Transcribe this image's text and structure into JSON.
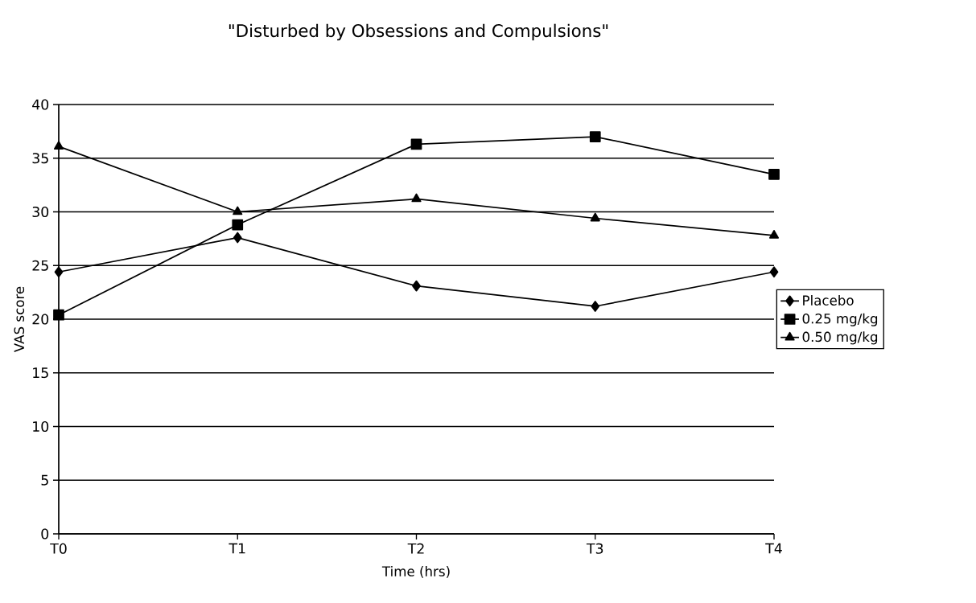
{
  "chart_data": {
    "type": "line",
    "title": "\"Disturbed by Obsessions and Compulsions\"",
    "xlabel": "Time (hrs)",
    "ylabel": "VAS score",
    "categories": [
      "T0",
      "T1",
      "T2",
      "T3",
      "T4"
    ],
    "series": [
      {
        "name": "Placebo",
        "color": "#000000",
        "marker": "diamond",
        "values": [
          24.4,
          27.6,
          23.1,
          21.2,
          24.4
        ]
      },
      {
        "name": "0.25 mg/kg",
        "color": "#000000",
        "marker": "square",
        "values": [
          20.4,
          28.8,
          36.3,
          37.0,
          33.5
        ]
      },
      {
        "name": "0.50 mg/kg",
        "color": "#000000",
        "marker": "triangle",
        "values": [
          36.1,
          30.0,
          31.2,
          29.4,
          27.8
        ]
      }
    ],
    "ylim": [
      0,
      40
    ],
    "yticks": [
      0,
      5,
      10,
      15,
      20,
      25,
      30,
      35,
      40
    ],
    "grid": "y",
    "legend": "right",
    "line_style": "solid"
  }
}
